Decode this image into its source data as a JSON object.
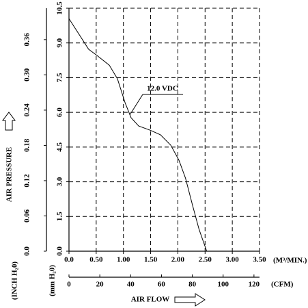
{
  "chart_data": {
    "type": "line",
    "y_label": "AIR PRESSURE",
    "x_label": "AIR FLOW",
    "x_unit": "(M³/MIN.)",
    "x2_unit": "(CFM)",
    "y_unit": "(mm H₂0)",
    "y2_unit": "(INCH H₂0)",
    "x": [
      0.0,
      0.36,
      0.53,
      0.74,
      0.89,
      1.03,
      1.14,
      1.28,
      1.49,
      1.68,
      1.87,
      2.02,
      2.14,
      2.27,
      2.39,
      2.53
    ],
    "series": [
      {
        "name": "12.0 VDC",
        "color": "#000000",
        "values": [
          10.05,
          8.73,
          8.43,
          8.04,
          7.45,
          6.42,
          5.77,
          5.41,
          5.23,
          5.03,
          4.58,
          3.93,
          3.16,
          1.98,
          0.94,
          0.0
        ]
      }
    ],
    "xlim": [
      0,
      3.5
    ],
    "xticks": [
      {
        "value": 0,
        "label": "0.0"
      },
      {
        "value": 0.5,
        "label": "0.50"
      },
      {
        "value": 1,
        "label": "1.00"
      },
      {
        "value": 1.5,
        "label": "1.50"
      },
      {
        "value": 2,
        "label": "2.00"
      },
      {
        "value": 2.5,
        "label": "2.50"
      },
      {
        "value": 3,
        "label": "3.00"
      },
      {
        "value": 3.5,
        "label": "3.50"
      }
    ],
    "x2lim": [
      0,
      123.6
    ],
    "x2ticks": [
      0,
      20,
      40,
      60,
      80,
      100,
      120
    ],
    "ylim": [
      0,
      10.5
    ],
    "yticks": [
      {
        "value": 0,
        "label": "0.0"
      },
      1.5,
      {
        "value": 3,
        "label": "3.0"
      },
      4.5,
      {
        "value": 6,
        "label": "6.0"
      },
      7.5,
      {
        "value": 9,
        "label": "9.0"
      },
      10.5
    ],
    "y2lim": [
      0,
      0.4134
    ],
    "y2ticks": [
      {
        "value": 0,
        "label": "0.0"
      },
      0.06,
      0.12,
      0.18,
      0.24,
      {
        "value": 0.3,
        "label": "0.30"
      },
      0.36
    ],
    "grid": true
  }
}
